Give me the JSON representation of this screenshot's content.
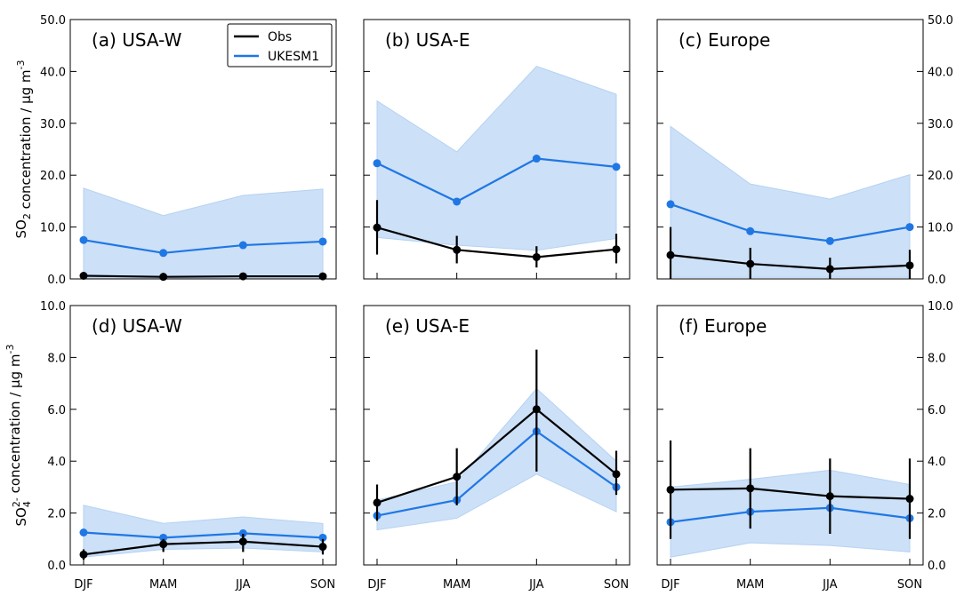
{
  "colors": {
    "obs": "#000000",
    "model": "#1f77e4",
    "band": "#cce0f7"
  },
  "chart_data": [
    {
      "type": "line",
      "title": "(a) USA-W",
      "categories": [
        "DJF",
        "MAM",
        "JJA",
        "SON"
      ],
      "ylabel": "SO$_2$ concentration / μg m$^{-3}$",
      "ylim": [
        0,
        50
      ],
      "yticks": [
        "0.0",
        "10.0",
        "20.0",
        "30.0",
        "40.0",
        "50.0"
      ],
      "legend": {
        "placement": "top-right",
        "entries": [
          "Obs",
          "UKESM1"
        ]
      },
      "series": [
        {
          "name": "Obs",
          "values": [
            0.6,
            0.4,
            0.5,
            0.5
          ],
          "err_low": [
            0.2,
            0.2,
            0.2,
            0.2
          ],
          "err_high": [
            0.9,
            0.7,
            0.7,
            0.7
          ]
        },
        {
          "name": "UKESM1",
          "values": [
            7.5,
            5.0,
            6.5,
            7.2
          ],
          "band_low": [
            0.2,
            0.2,
            0.2,
            0.2
          ],
          "band_high": [
            17.5,
            12.2,
            16.1,
            17.3
          ]
        }
      ]
    },
    {
      "type": "line",
      "title": "(b) USA-E",
      "categories": [
        "DJF",
        "MAM",
        "JJA",
        "SON"
      ],
      "ylim": [
        0,
        50
      ],
      "series": [
        {
          "name": "Obs",
          "values": [
            9.9,
            5.6,
            4.2,
            5.7
          ],
          "err_low": [
            4.7,
            3.0,
            2.2,
            3.0
          ],
          "err_high": [
            15.2,
            8.3,
            6.3,
            8.7
          ]
        },
        {
          "name": "UKESM1",
          "values": [
            22.3,
            14.9,
            23.2,
            21.6
          ],
          "band_low": [
            8.0,
            6.5,
            5.5,
            7.8
          ],
          "band_high": [
            34.3,
            24.5,
            41.0,
            35.6
          ]
        }
      ]
    },
    {
      "type": "line",
      "title": "(c) Europe",
      "categories": [
        "DJF",
        "MAM",
        "JJA",
        "SON"
      ],
      "ylim": [
        0,
        50
      ],
      "yticks_right": [
        "0.0",
        "10.0",
        "20.0",
        "30.0",
        "40.0",
        "50.0"
      ],
      "series": [
        {
          "name": "Obs",
          "values": [
            4.6,
            2.9,
            1.9,
            2.6
          ],
          "err_low": [
            0.0,
            0.0,
            0.0,
            0.0
          ],
          "err_high": [
            10.0,
            6.0,
            4.1,
            5.6
          ]
        },
        {
          "name": "UKESM1",
          "values": [
            14.4,
            9.2,
            7.3,
            10.0
          ],
          "band_low": [
            0.3,
            0.3,
            0.3,
            0.3
          ],
          "band_high": [
            29.4,
            18.3,
            15.4,
            20.1
          ]
        }
      ]
    },
    {
      "type": "line",
      "title": "(d) USA-W",
      "categories": [
        "DJF",
        "MAM",
        "JJA",
        "SON"
      ],
      "ylabel": "SO$_4^{2-}$ concentration / μg m$^{-3}$",
      "ylim": [
        0,
        10
      ],
      "yticks": [
        "0.0",
        "2.0",
        "4.0",
        "6.0",
        "8.0",
        "10.0"
      ],
      "series": [
        {
          "name": "Obs",
          "values": [
            0.4,
            0.8,
            0.9,
            0.7
          ],
          "err_low": [
            0.2,
            0.5,
            0.5,
            0.4
          ],
          "err_high": [
            0.6,
            1.0,
            1.2,
            1.0
          ]
        },
        {
          "name": "UKESM1",
          "values": [
            1.25,
            1.05,
            1.22,
            1.05
          ],
          "band_low": [
            0.3,
            0.6,
            0.65,
            0.5
          ],
          "band_high": [
            2.3,
            1.6,
            1.85,
            1.6
          ]
        }
      ]
    },
    {
      "type": "line",
      "title": "(e) USA-E",
      "categories": [
        "DJF",
        "MAM",
        "JJA",
        "SON"
      ],
      "ylim": [
        0,
        10
      ],
      "series": [
        {
          "name": "Obs",
          "values": [
            2.4,
            3.4,
            6.0,
            3.5
          ],
          "err_low": [
            1.7,
            2.3,
            3.6,
            2.7
          ],
          "err_high": [
            3.1,
            4.5,
            8.3,
            4.4
          ]
        },
        {
          "name": "UKESM1",
          "values": [
            1.9,
            2.5,
            5.15,
            3.0
          ],
          "band_low": [
            1.35,
            1.8,
            3.5,
            2.05
          ],
          "band_high": [
            2.5,
            3.2,
            6.8,
            4.0
          ]
        }
      ]
    },
    {
      "type": "line",
      "title": "(f) Europe",
      "categories": [
        "DJF",
        "MAM",
        "JJA",
        "SON"
      ],
      "ylim": [
        0,
        10
      ],
      "yticks_right": [
        "0.0",
        "2.0",
        "4.0",
        "6.0",
        "8.0",
        "10.0"
      ],
      "series": [
        {
          "name": "Obs",
          "values": [
            2.9,
            2.95,
            2.65,
            2.55
          ],
          "err_low": [
            1.0,
            1.4,
            1.2,
            1.0
          ],
          "err_high": [
            4.8,
            4.5,
            4.1,
            4.1
          ]
        },
        {
          "name": "UKESM1",
          "values": [
            1.65,
            2.05,
            2.2,
            1.8
          ],
          "band_low": [
            0.3,
            0.85,
            0.75,
            0.5
          ],
          "band_high": [
            3.0,
            3.3,
            3.65,
            3.1
          ]
        }
      ]
    }
  ]
}
